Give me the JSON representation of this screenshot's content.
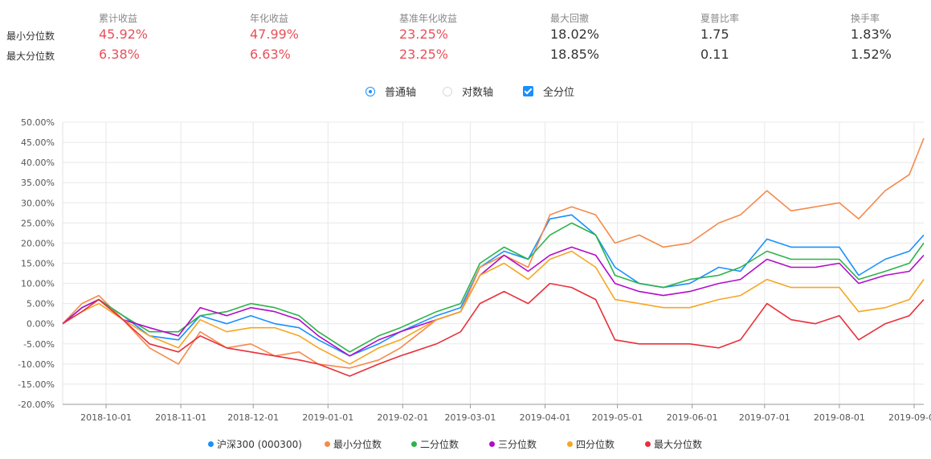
{
  "stats": {
    "headers": [
      "累计收益",
      "年化收益",
      "基准年化收益",
      "最大回撤",
      "夏普比率",
      "换手率"
    ],
    "rows": [
      {
        "label": "最小分位数",
        "values": [
          "45.92%",
          "47.99%",
          "23.25%",
          "18.02%",
          "1.75",
          "1.83%"
        ]
      },
      {
        "label": "最大分位数",
        "values": [
          "6.38%",
          "6.63%",
          "23.25%",
          "18.85%",
          "0.11",
          "1.52%"
        ]
      }
    ],
    "highlight_color": "#e8505b"
  },
  "options": {
    "normal_axis": "普通轴",
    "log_axis": "对数轴",
    "all_quantiles": "全分位",
    "selected_axis": "普通轴",
    "all_quantiles_checked": true
  },
  "chart_data": {
    "type": "line",
    "y_ticks": [
      "50.00%",
      "45.00%",
      "40.00%",
      "35.00%",
      "30.00%",
      "25.00%",
      "20.00%",
      "15.00%",
      "10.00%",
      "5.00%",
      "0.00%",
      "-5.00%",
      "-10.00%",
      "-15.00%",
      "-20.00%"
    ],
    "ylim": [
      -20,
      50
    ],
    "x_ticks": [
      "2018-10-01",
      "2018-11-01",
      "2018-12-01",
      "2019-01-01",
      "2019-02-01",
      "2019-03-01",
      "2019-04-01",
      "2019-05-01",
      "2019-06-01",
      "2019-07-01",
      "2019-08-01",
      "2019-09-01"
    ],
    "x_start": "2018-09-13",
    "x_end": "2019-09-05",
    "x": [
      "2018-09-13",
      "2018-09-21",
      "2018-09-28",
      "2018-10-08",
      "2018-10-19",
      "2018-10-31",
      "2018-11-09",
      "2018-11-20",
      "2018-11-30",
      "2018-12-10",
      "2018-12-20",
      "2018-12-28",
      "2019-01-10",
      "2019-01-22",
      "2019-01-31",
      "2019-02-15",
      "2019-02-25",
      "2019-03-05",
      "2019-03-15",
      "2019-03-25",
      "2019-04-03",
      "2019-04-12",
      "2019-04-22",
      "2019-04-30",
      "2019-05-10",
      "2019-05-20",
      "2019-05-31",
      "2019-06-12",
      "2019-06-21",
      "2019-07-02",
      "2019-07-12",
      "2019-07-22",
      "2019-08-01",
      "2019-08-09",
      "2019-08-20",
      "2019-08-30",
      "2019-09-05"
    ],
    "series": [
      {
        "name": "沪深300 (000300)",
        "color": "#1890ff",
        "values": [
          0,
          4,
          6,
          2,
          -3,
          -4,
          2,
          0,
          2,
          0,
          -1,
          -4,
          -8,
          -5,
          -2,
          2,
          4,
          14,
          18,
          16,
          26,
          27,
          22,
          14,
          10,
          9,
          10,
          14,
          13,
          21,
          19,
          19,
          19,
          12,
          16,
          18,
          22
        ]
      },
      {
        "name": "最小分位数",
        "color": "#f58a4b",
        "values": [
          0,
          5,
          7,
          1,
          -6,
          -10,
          -2,
          -6,
          -5,
          -8,
          -7,
          -10,
          -11,
          -9,
          -6,
          1,
          3,
          14,
          17,
          14,
          27,
          29,
          27,
          20,
          22,
          19,
          20,
          25,
          27,
          33,
          28,
          29,
          30,
          26,
          33,
          37,
          46
        ]
      },
      {
        "name": "二分位数",
        "color": "#2db24a",
        "values": [
          0,
          4,
          6,
          2,
          -2,
          -2,
          2,
          3,
          5,
          4,
          2,
          -2,
          -7,
          -3,
          -1,
          3,
          5,
          15,
          19,
          16,
          22,
          25,
          22,
          12,
          10,
          9,
          11,
          12,
          14,
          18,
          16,
          16,
          16,
          11,
          13,
          15,
          20
        ]
      },
      {
        "name": "三分位数",
        "color": "#b10dc9",
        "values": [
          0,
          4,
          6,
          1,
          -1,
          -3,
          4,
          2,
          4,
          3,
          1,
          -3,
          -8,
          -4,
          -2,
          1,
          3,
          12,
          17,
          13,
          17,
          19,
          17,
          10,
          8,
          7,
          8,
          10,
          11,
          16,
          14,
          14,
          15,
          10,
          12,
          13,
          17
        ]
      },
      {
        "name": "四分位数",
        "color": "#f5a623",
        "values": [
          0,
          3,
          5,
          1,
          -3,
          -6,
          1,
          -2,
          -1,
          -1,
          -3,
          -6,
          -10,
          -6,
          -4,
          1,
          3,
          12,
          15,
          11,
          16,
          18,
          14,
          6,
          5,
          4,
          4,
          6,
          7,
          11,
          9,
          9,
          9,
          3,
          4,
          6,
          11
        ]
      },
      {
        "name": "最大分位数",
        "color": "#e8303a",
        "values": [
          0,
          3,
          6,
          1,
          -5,
          -7,
          -3,
          -6,
          -7,
          -8,
          -9,
          -10,
          -13,
          -10,
          -8,
          -5,
          -2,
          5,
          8,
          5,
          10,
          9,
          6,
          -4,
          -5,
          -5,
          -5,
          -6,
          -4,
          5,
          1,
          0,
          2,
          -4,
          0,
          2,
          6
        ]
      }
    ],
    "grid": true,
    "legend_position": "bottom"
  }
}
